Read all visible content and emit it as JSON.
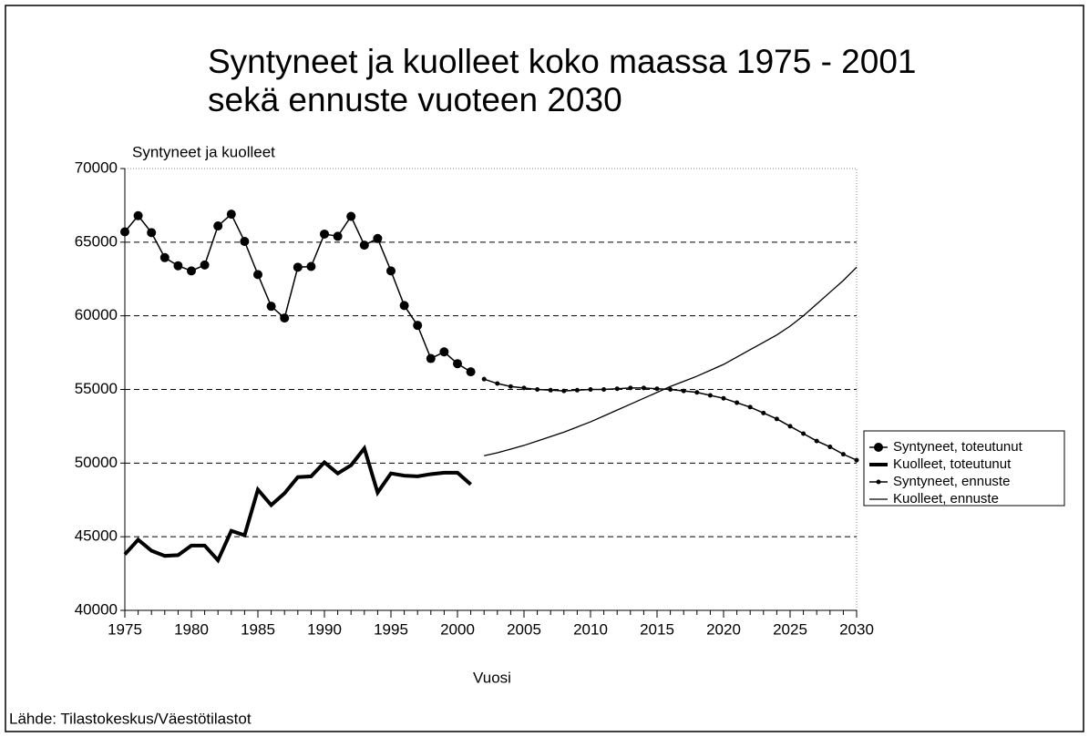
{
  "chart_data": {
    "type": "line",
    "title": [
      "Syntyneet ja kuolleet koko maassa 1975 - 2001",
      "sekä ennuste vuoteen 2030"
    ],
    "y_label": "Syntyneet ja kuolleet",
    "x_label": "Vuosi",
    "source": "Lähde: Tilastokeskus/Väestötilastot",
    "xlim": [
      1975,
      2030
    ],
    "xticks": [
      1975,
      1980,
      1985,
      1990,
      1995,
      2000,
      2005,
      2010,
      2015,
      2020,
      2025,
      2030
    ],
    "ylim": [
      40000,
      70000
    ],
    "yticks": [
      40000,
      45000,
      50000,
      55000,
      60000,
      65000,
      70000
    ],
    "grid": true,
    "legend": "right",
    "series": [
      {
        "name": "Syntyneet, toteutunut",
        "color": "#000000",
        "line_width": 1.5,
        "marker": "large",
        "x": [
          1975,
          1976,
          1977,
          1978,
          1979,
          1980,
          1981,
          1982,
          1983,
          1984,
          1985,
          1986,
          1987,
          1988,
          1989,
          1990,
          1991,
          1992,
          1993,
          1994,
          1995,
          1996,
          1997,
          1998,
          1999,
          2000,
          2001
        ],
        "values": [
          65700,
          66800,
          65650,
          63950,
          63400,
          63050,
          63450,
          66100,
          66900,
          65050,
          62800,
          60650,
          59850,
          63300,
          63350,
          65550,
          65400,
          66750,
          64800,
          65250,
          63050,
          60700,
          59350,
          57100,
          57550,
          56750,
          56200
        ]
      },
      {
        "name": "Kuolleet, toteutunut",
        "color": "#000000",
        "line_width": 4,
        "marker": null,
        "x": [
          1975,
          1976,
          1977,
          1978,
          1979,
          1980,
          1981,
          1982,
          1983,
          1984,
          1985,
          1986,
          1987,
          1988,
          1989,
          1990,
          1991,
          1992,
          1993,
          1994,
          1995,
          1996,
          1997,
          1998,
          1999,
          2000,
          2001
        ],
        "values": [
          43800,
          44800,
          44050,
          43700,
          43750,
          44400,
          44400,
          43400,
          45400,
          45100,
          48200,
          47150,
          47950,
          49050,
          49100,
          50050,
          49300,
          49850,
          51000,
          48000,
          49300,
          49150,
          49100,
          49250,
          49350,
          49350,
          48550
        ]
      },
      {
        "name": "Syntyneet, ennuste",
        "color": "#000000",
        "line_width": 1.5,
        "marker": "small",
        "x": [
          2002,
          2003,
          2004,
          2005,
          2006,
          2007,
          2008,
          2009,
          2010,
          2011,
          2012,
          2013,
          2014,
          2015,
          2016,
          2017,
          2018,
          2019,
          2020,
          2021,
          2022,
          2023,
          2024,
          2025,
          2026,
          2027,
          2028,
          2029,
          2030
        ],
        "values": [
          55700,
          55400,
          55200,
          55100,
          55000,
          54950,
          54900,
          54950,
          55000,
          55000,
          55050,
          55100,
          55100,
          55050,
          55000,
          54900,
          54800,
          54600,
          54400,
          54100,
          53800,
          53400,
          53000,
          52500,
          52000,
          51500,
          51100,
          50600,
          50200
        ]
      },
      {
        "name": "Kuolleet, ennuste",
        "color": "#000000",
        "line_width": 1.3,
        "marker": null,
        "x": [
          2002,
          2003,
          2004,
          2005,
          2006,
          2007,
          2008,
          2009,
          2010,
          2011,
          2012,
          2013,
          2014,
          2015,
          2016,
          2017,
          2018,
          2019,
          2020,
          2021,
          2022,
          2023,
          2024,
          2025,
          2026,
          2027,
          2028,
          2029,
          2030
        ],
        "values": [
          50500,
          50700,
          50950,
          51200,
          51500,
          51800,
          52100,
          52450,
          52800,
          53200,
          53600,
          54000,
          54400,
          54800,
          55200,
          55550,
          55900,
          56300,
          56700,
          57200,
          57700,
          58200,
          58700,
          59300,
          60000,
          60800,
          61600,
          62400,
          63300
        ]
      }
    ]
  }
}
